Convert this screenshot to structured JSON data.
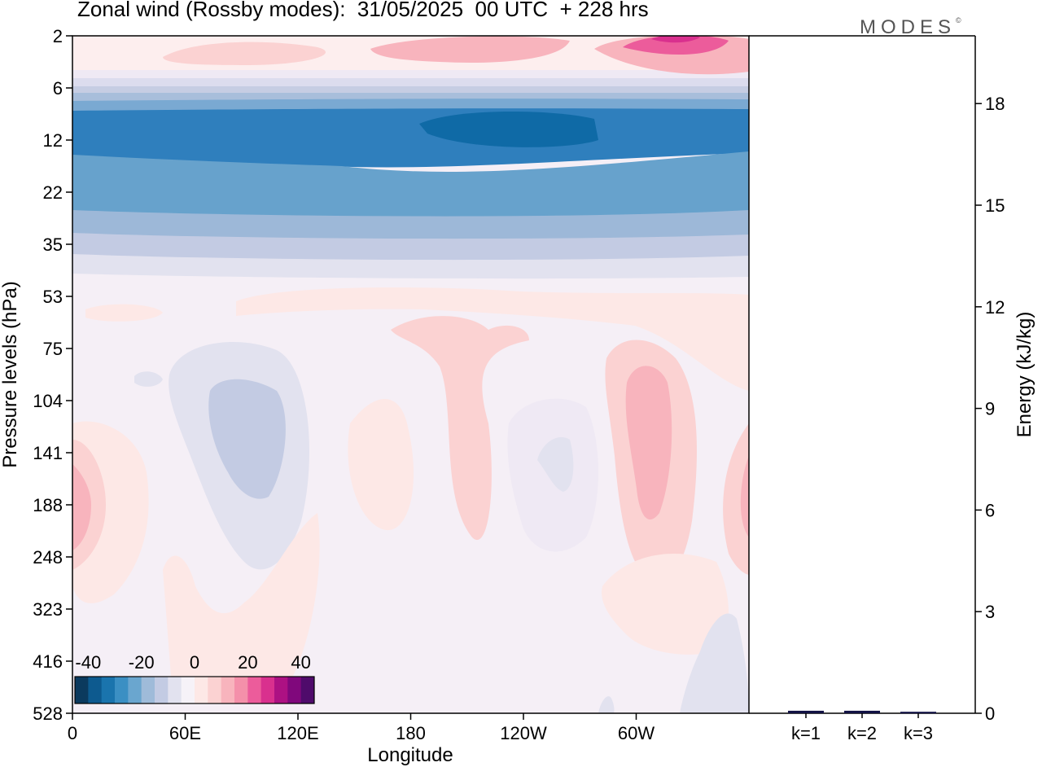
{
  "title": "Zonal wind (Rossby modes):  31/05/2025  00 UTC  + 228 hrs",
  "brand": "MODES",
  "brand_mark": "©",
  "chart_data": [
    {
      "type": "heatmap",
      "xlabel": "Longitude",
      "ylabel": "Pressure levels (hPa)",
      "x_ticks": [
        "0",
        "60E",
        "120E",
        "180",
        "120W",
        "60W"
      ],
      "y_ticks": [
        "2",
        "6",
        "12",
        "22",
        "35",
        "53",
        "75",
        "104",
        "141",
        "188",
        "248",
        "323",
        "416",
        "528"
      ],
      "y_scale": "log",
      "colorbar": {
        "tick_labels": [
          "-40",
          "-20",
          "0",
          "20",
          "40"
        ],
        "levels": [
          -40,
          -35,
          -30,
          -25,
          -20,
          -15,
          -10,
          -5,
          0,
          5,
          10,
          15,
          20,
          25,
          30,
          35,
          40
        ],
        "colors": [
          "#0b3a5e",
          "#0d5a8f",
          "#1a74ad",
          "#3b8fc3",
          "#6aa6cf",
          "#9fbbd9",
          "#c3cbe3",
          "#e2e2ef",
          "#f6f2f8",
          "#fde8e6",
          "#fbd2d2",
          "#f8b4bd",
          "#f490aa",
          "#ec5c9b",
          "#d9308e",
          "#ad1183",
          "#80087c",
          "#4f0b6b"
        ]
      }
    },
    {
      "type": "bar",
      "categories": [
        "k=1",
        "k=2",
        "k=3"
      ],
      "values": [
        0.05,
        0.05,
        0.02
      ],
      "ylabel": "Energy (kJ/kg)",
      "y_ticks": [
        "0",
        "3",
        "6",
        "9",
        "12",
        "15",
        "18"
      ],
      "ylim": [
        0,
        20
      ],
      "bar_color": "#111144"
    }
  ]
}
